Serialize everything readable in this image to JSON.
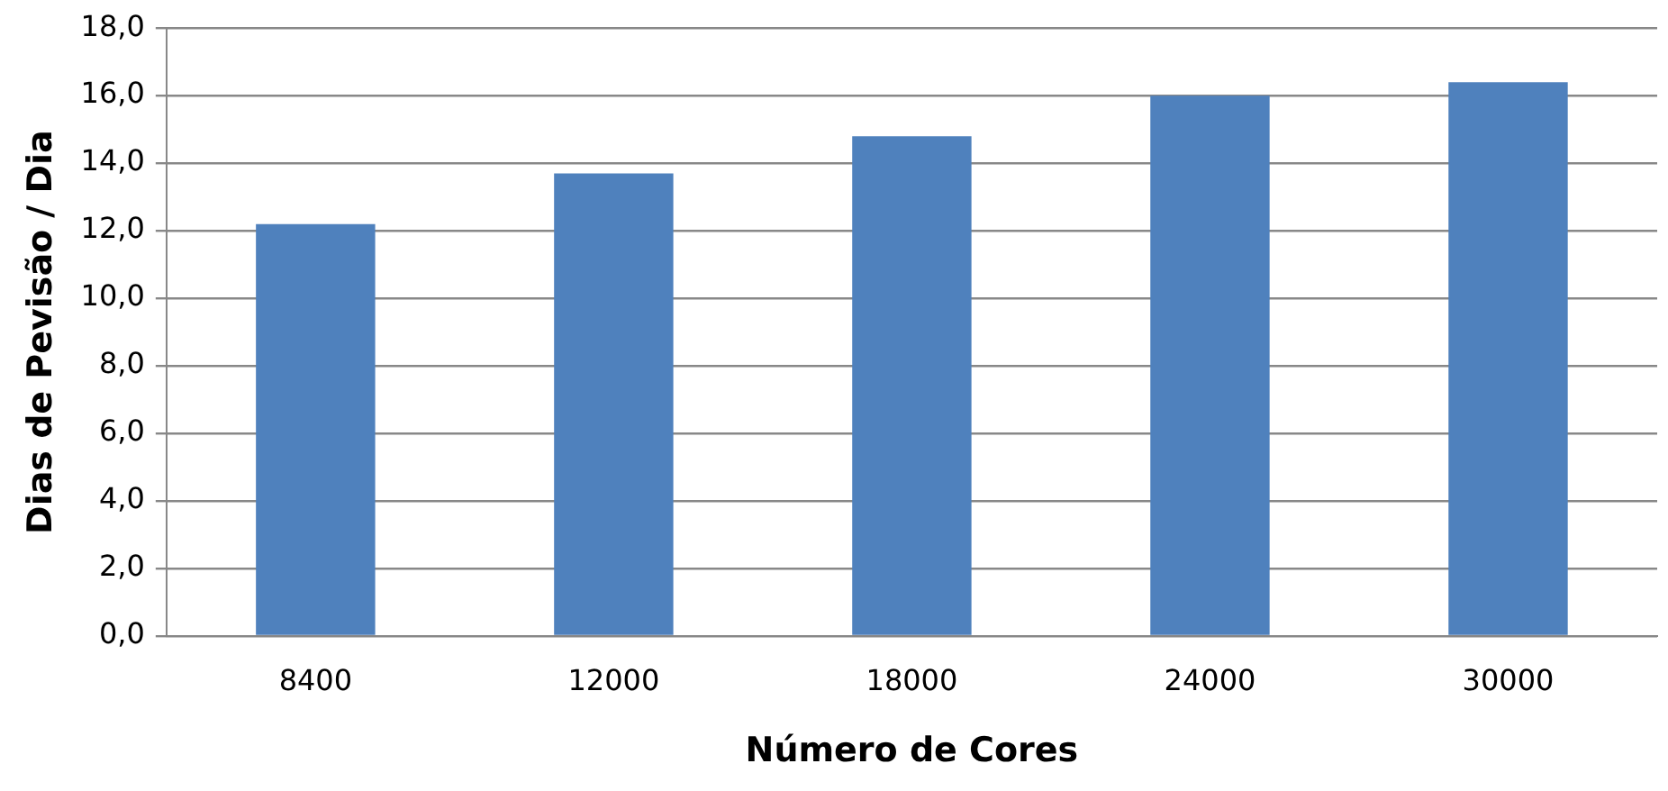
{
  "chart_data": {
    "type": "bar",
    "xlabel": "Número de Cores",
    "ylabel": "Dias de Pevisão / Dia",
    "categories": [
      "8400",
      "12000",
      "18000",
      "24000",
      "30000"
    ],
    "values": [
      12.2,
      13.7,
      14.8,
      16.0,
      16.4
    ],
    "color": "#4f81bd",
    "ylim": [
      0,
      18
    ],
    "yticks": [
      {
        "value": 0,
        "label": "0,0"
      },
      {
        "value": 2,
        "label": "2,0"
      },
      {
        "value": 4,
        "label": "4,0"
      },
      {
        "value": 6,
        "label": "6,0"
      },
      {
        "value": 8,
        "label": "8,0"
      },
      {
        "value": 10,
        "label": "10,0"
      },
      {
        "value": 12,
        "label": "12,0"
      },
      {
        "value": 14,
        "label": "14,0"
      },
      {
        "value": 16,
        "label": "16,0"
      },
      {
        "value": 18,
        "label": "18,0"
      }
    ],
    "grid": "y",
    "legend": false
  }
}
